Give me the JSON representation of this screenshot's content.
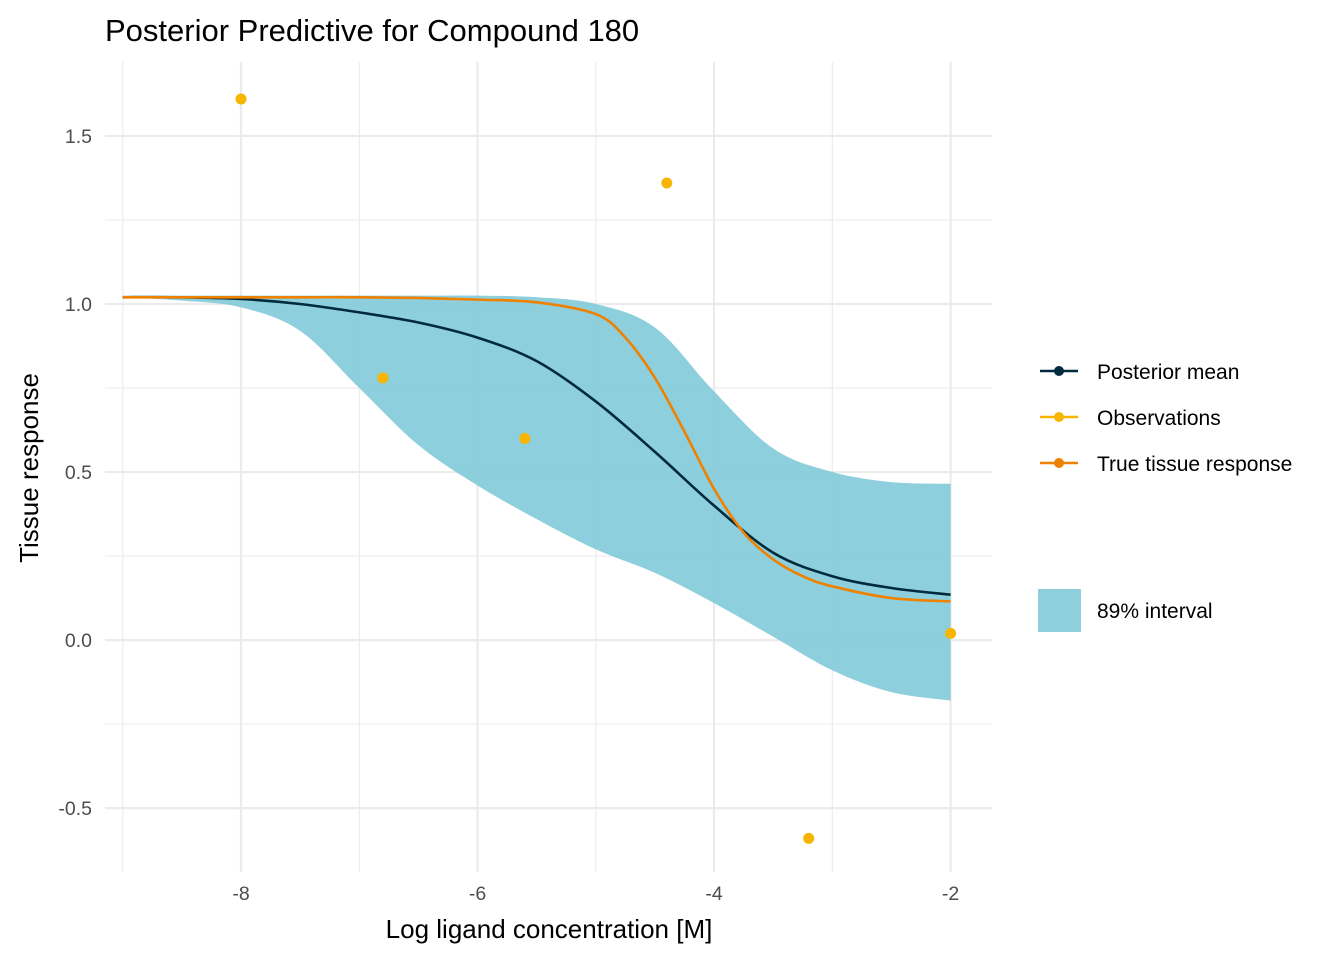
{
  "chart_data": {
    "type": "line",
    "title": "Posterior Predictive for Compound 180",
    "xlabel": "Log ligand concentration [M]",
    "ylabel": "Tissue response",
    "xlim": [
      -9.15,
      -1.65
    ],
    "ylim": [
      -0.69,
      1.72
    ],
    "x_ticks": [
      -8,
      -6,
      -4,
      -2
    ],
    "x_tick_labels": [
      "-8",
      "-6",
      "-4",
      "-2"
    ],
    "y_ticks": [
      -0.5,
      0.0,
      0.5,
      1.0,
      1.5
    ],
    "y_tick_labels": [
      "-0.5",
      "0.0",
      "0.5",
      "1.0",
      "1.5"
    ],
    "grid": true,
    "legend_position": "right",
    "series": [
      {
        "name": "Posterior mean",
        "kind": "line",
        "color": "#002b3d",
        "x": [
          -9.0,
          -8.5,
          -8.0,
          -7.5,
          -7.0,
          -6.5,
          -6.0,
          -5.5,
          -5.0,
          -4.5,
          -4.0,
          -3.5,
          -3.0,
          -2.5,
          -2.0
        ],
        "y": [
          1.02,
          1.02,
          1.015,
          1.0,
          0.975,
          0.945,
          0.9,
          0.83,
          0.71,
          0.56,
          0.4,
          0.26,
          0.19,
          0.155,
          0.135
        ]
      },
      {
        "name": "Observations",
        "kind": "points",
        "color": "#f7b500",
        "x": [
          -8.0,
          -6.8,
          -5.6,
          -4.4,
          -3.2,
          -2.0
        ],
        "y": [
          1.61,
          0.78,
          0.6,
          1.36,
          -0.59,
          0.02
        ]
      },
      {
        "name": "True tissue response",
        "kind": "line",
        "color": "#ee8100",
        "x": [
          -9.0,
          -8.5,
          -8.0,
          -7.5,
          -7.0,
          -6.5,
          -6.0,
          -5.5,
          -5.0,
          -4.75,
          -4.5,
          -4.25,
          -4.0,
          -3.75,
          -3.5,
          -3.25,
          -3.0,
          -2.5,
          -2.0
        ],
        "y": [
          1.02,
          1.02,
          1.02,
          1.02,
          1.02,
          1.018,
          1.013,
          1.005,
          0.97,
          0.9,
          0.78,
          0.62,
          0.45,
          0.32,
          0.24,
          0.19,
          0.16,
          0.125,
          0.115
        ]
      }
    ],
    "band": {
      "name": "89% interval",
      "color": "#7ec8d8",
      "x": [
        -9.0,
        -8.5,
        -8.0,
        -7.5,
        -7.0,
        -6.5,
        -6.0,
        -5.5,
        -5.0,
        -4.5,
        -4.0,
        -3.5,
        -3.0,
        -2.5,
        -2.0
      ],
      "lower": [
        1.02,
        1.01,
        0.99,
        0.92,
        0.75,
        0.58,
        0.46,
        0.36,
        0.27,
        0.2,
        0.11,
        0.01,
        -0.09,
        -0.155,
        -0.18
      ],
      "upper": [
        1.025,
        1.025,
        1.025,
        1.025,
        1.025,
        1.025,
        1.025,
        1.02,
        1.0,
        0.93,
        0.74,
        0.57,
        0.5,
        0.47,
        0.465
      ]
    },
    "legend": {
      "items": [
        "Posterior mean",
        "Observations",
        "True tissue response"
      ],
      "fill_item": "89% interval"
    }
  }
}
